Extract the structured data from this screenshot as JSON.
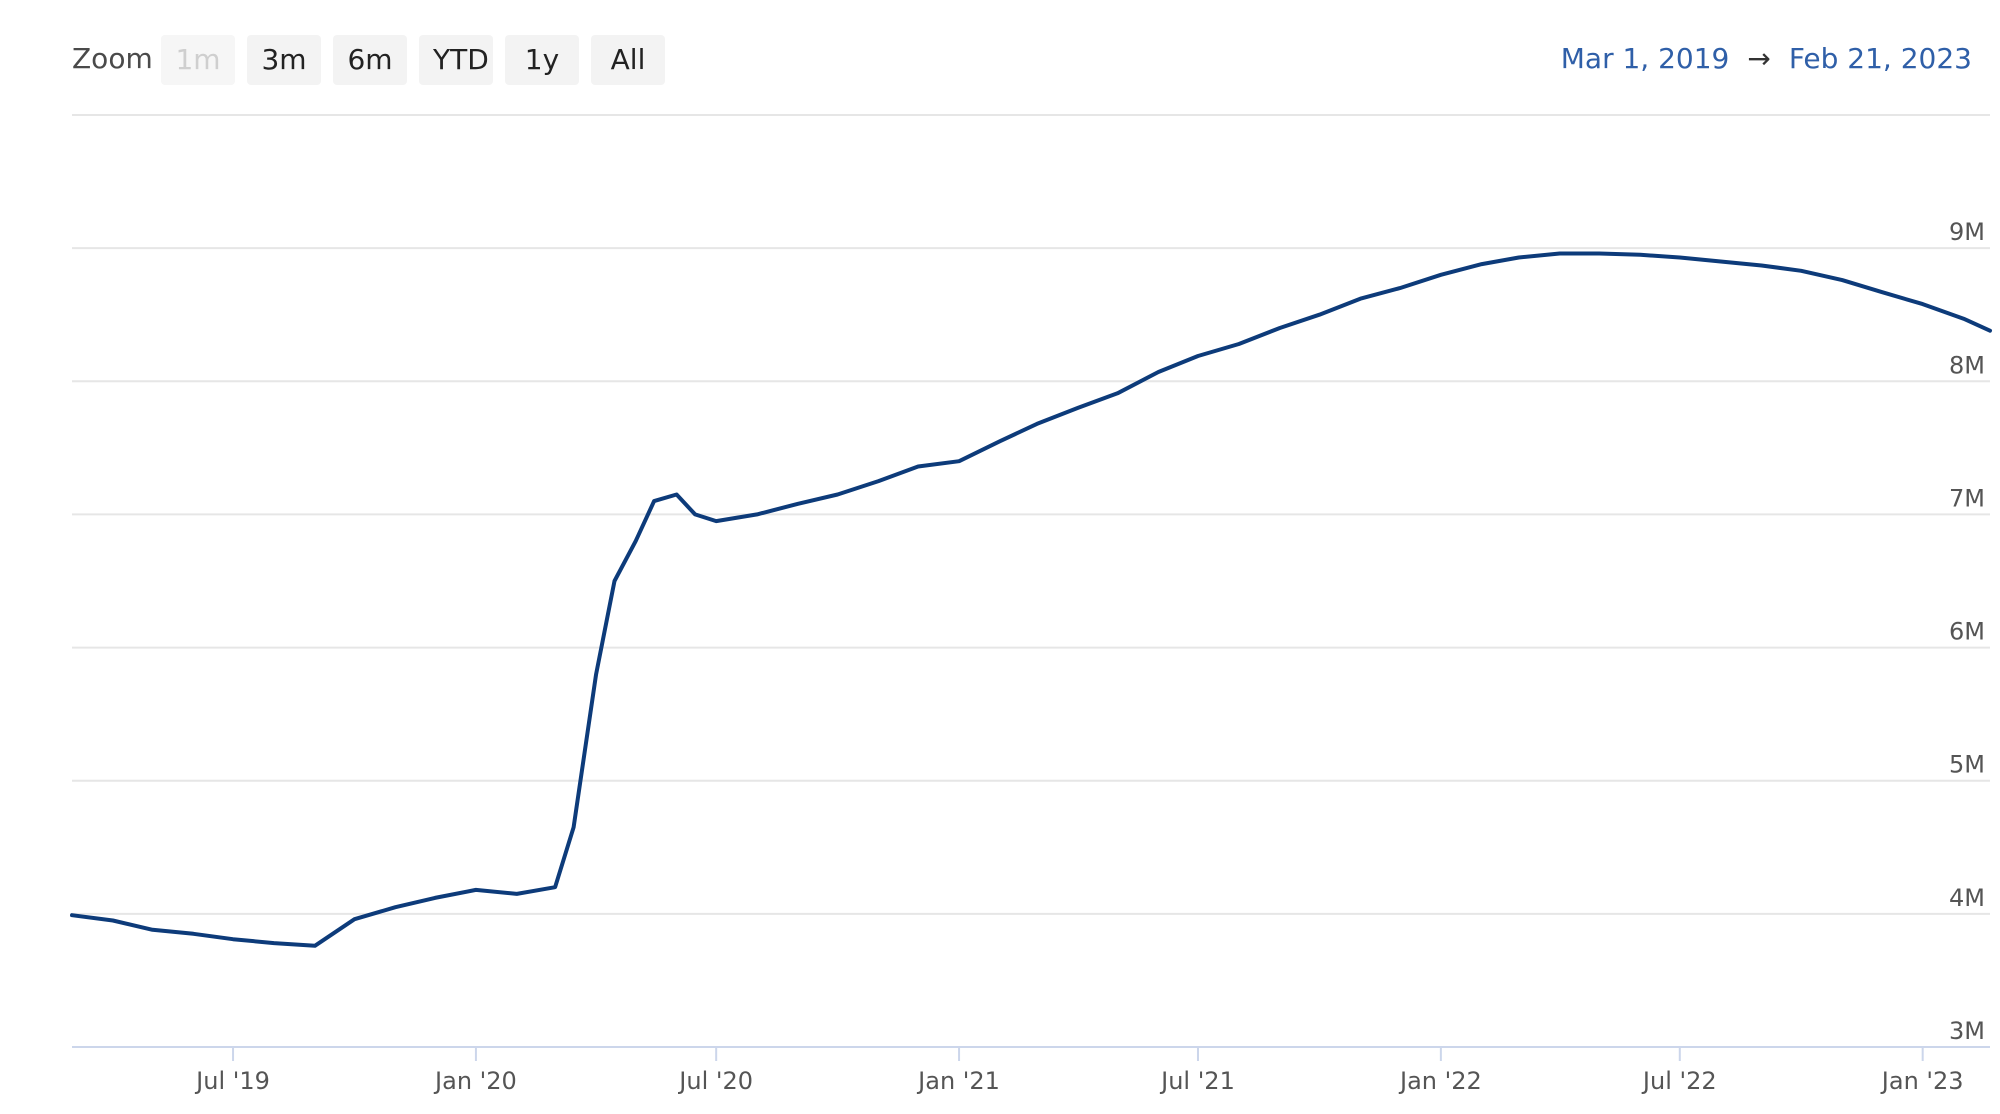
{
  "toolbar": {
    "zoom_label": "Zoom",
    "buttons": [
      {
        "label": "1m",
        "enabled": false
      },
      {
        "label": "3m",
        "enabled": true
      },
      {
        "label": "6m",
        "enabled": true
      },
      {
        "label": "YTD",
        "enabled": true
      },
      {
        "label": "1y",
        "enabled": true
      },
      {
        "label": "All",
        "enabled": true
      }
    ],
    "range_from": "Mar 1, 2019",
    "range_arrow": "→",
    "range_to": "Feb 21, 2023"
  },
  "colors": {
    "line": "#0d3b7a",
    "grid": "#e6e6e6",
    "range_text": "#2f5fa8"
  },
  "chart_data": {
    "type": "line",
    "title": "",
    "xlabel": "",
    "ylabel": "",
    "x_ticks": [
      "Jul '19",
      "Jan '20",
      "Jul '20",
      "Jan '21",
      "Jul '21",
      "Jan '22",
      "Jul '22",
      "Jan '23"
    ],
    "y_ticks": [
      "3M",
      "4M",
      "5M",
      "6M",
      "7M",
      "8M",
      "9M"
    ],
    "ylim": [
      3000000,
      10000000
    ],
    "xlim": [
      "2019-03-01",
      "2023-02-21"
    ],
    "grid": true,
    "legend": "none",
    "series": [
      {
        "x": [
          "2019-03-01",
          "2019-04-01",
          "2019-05-01",
          "2019-06-01",
          "2019-07-01",
          "2019-08-01",
          "2019-09-01",
          "2019-10-01",
          "2019-11-01",
          "2019-12-01",
          "2020-01-01",
          "2020-02-01",
          "2020-03-01",
          "2020-03-15",
          "2020-04-01",
          "2020-04-15",
          "2020-05-01",
          "2020-05-15",
          "2020-06-01",
          "2020-06-15",
          "2020-07-01",
          "2020-08-01",
          "2020-09-01",
          "2020-10-01",
          "2020-11-01",
          "2020-12-01",
          "2021-01-01",
          "2021-02-01",
          "2021-03-01",
          "2021-04-01",
          "2021-05-01",
          "2021-06-01",
          "2021-07-01",
          "2021-08-01",
          "2021-09-01",
          "2021-10-01",
          "2021-11-01",
          "2021-12-01",
          "2022-01-01",
          "2022-02-01",
          "2022-03-01",
          "2022-04-01",
          "2022-05-01",
          "2022-06-01",
          "2022-07-01",
          "2022-08-01",
          "2022-09-01",
          "2022-10-01",
          "2022-11-01",
          "2022-12-01",
          "2023-01-01",
          "2023-02-01",
          "2023-02-21"
        ],
        "values": [
          3990000,
          3950000,
          3880000,
          3850000,
          3810000,
          3780000,
          3760000,
          3960000,
          4050000,
          4120000,
          4180000,
          4150000,
          4200000,
          4650000,
          5800000,
          6500000,
          6800000,
          7100000,
          7150000,
          7000000,
          6950000,
          7000000,
          7080000,
          7150000,
          7250000,
          7360000,
          7400000,
          7550000,
          7680000,
          7800000,
          7910000,
          8070000,
          8190000,
          8280000,
          8400000,
          8500000,
          8620000,
          8700000,
          8800000,
          8880000,
          8930000,
          8960000,
          8960000,
          8950000,
          8930000,
          8900000,
          8870000,
          8830000,
          8760000,
          8670000,
          8580000,
          8470000,
          8380000
        ]
      }
    ]
  }
}
